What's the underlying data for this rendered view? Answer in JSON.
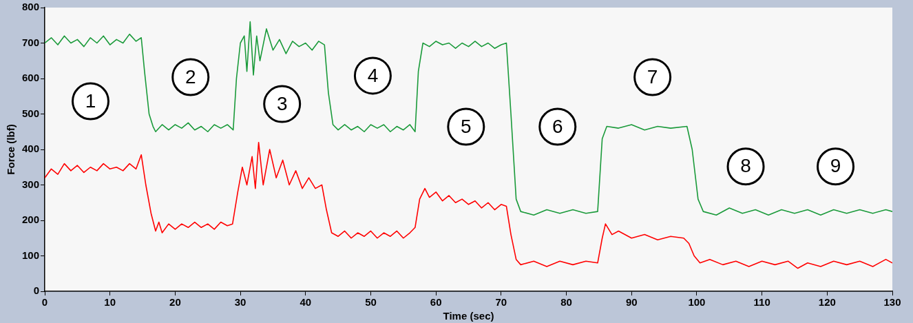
{
  "chart_data": {
    "type": "line",
    "xlabel": "Time (sec)",
    "ylabel": "Force (lbf)",
    "xlim": [
      0,
      130
    ],
    "ylim": [
      0,
      800
    ],
    "xticks": [
      0,
      10,
      20,
      30,
      40,
      50,
      60,
      70,
      80,
      90,
      100,
      110,
      120,
      130
    ],
    "yticks": [
      0,
      100,
      200,
      300,
      400,
      500,
      600,
      700,
      800
    ],
    "grid": false,
    "annotations": [
      "1",
      "2",
      "3",
      "4",
      "5",
      "6",
      "7",
      "8",
      "9"
    ],
    "series": [
      {
        "color": "#1a9a3a",
        "x": [
          0,
          1,
          2,
          3,
          4,
          5,
          6,
          7,
          8,
          9,
          10,
          11,
          12,
          13,
          14,
          14.8,
          15.3,
          16,
          16.6,
          17,
          18,
          19,
          20,
          21,
          22,
          23,
          24,
          25,
          26,
          27,
          28,
          28.9,
          29.4,
          30,
          30.6,
          31,
          31.5,
          32,
          32.5,
          33,
          34,
          35,
          36,
          37,
          38,
          39,
          40,
          41,
          42,
          42.9,
          43.5,
          44.2,
          45,
          46,
          47,
          48,
          49,
          50,
          51,
          52,
          53,
          54,
          55,
          56,
          56.8,
          57.3,
          58,
          59,
          60,
          61,
          62,
          63,
          64,
          65,
          66,
          67,
          68,
          69,
          70,
          70.8,
          71.5,
          72.3,
          73,
          75,
          77,
          79,
          81,
          83,
          84.8,
          85.5,
          86.2,
          88,
          90,
          92,
          94,
          96,
          98.5,
          99.3,
          100.2,
          101,
          103,
          105,
          107,
          109,
          111,
          113,
          115,
          117,
          119,
          121,
          123,
          125,
          127,
          129,
          130
        ],
        "values": [
          700,
          715,
          695,
          720,
          700,
          710,
          690,
          715,
          700,
          720,
          695,
          710,
          700,
          725,
          705,
          715,
          620,
          500,
          465,
          450,
          470,
          455,
          470,
          460,
          475,
          455,
          465,
          450,
          470,
          460,
          470,
          455,
          600,
          700,
          720,
          620,
          760,
          610,
          720,
          650,
          740,
          680,
          710,
          670,
          705,
          690,
          700,
          680,
          705,
          695,
          560,
          470,
          455,
          470,
          455,
          465,
          450,
          470,
          460,
          470,
          450,
          465,
          455,
          470,
          450,
          620,
          700,
          690,
          705,
          695,
          700,
          685,
          700,
          690,
          705,
          690,
          700,
          685,
          695,
          700,
          500,
          260,
          225,
          215,
          230,
          220,
          230,
          220,
          225,
          430,
          465,
          460,
          470,
          455,
          465,
          460,
          465,
          400,
          260,
          225,
          215,
          235,
          220,
          230,
          215,
          230,
          220,
          230,
          215,
          230,
          220,
          230,
          220,
          230,
          225
        ]
      },
      {
        "color": "#ff0000",
        "x": [
          0,
          1,
          2,
          3,
          4,
          5,
          6,
          7,
          8,
          9,
          10,
          11,
          12,
          13,
          14,
          14.8,
          15.5,
          16.3,
          17,
          17.5,
          18,
          19,
          20,
          21,
          22,
          23,
          24,
          25,
          26,
          27,
          28,
          28.8,
          29.6,
          30.3,
          31,
          31.8,
          32.3,
          32.8,
          33.5,
          34.5,
          35.5,
          36.5,
          37.5,
          38.5,
          39.5,
          40.5,
          41.5,
          42.5,
          43.2,
          44,
          45,
          46,
          47,
          48,
          49,
          50,
          51,
          52,
          53,
          54,
          55,
          56,
          56.8,
          57.5,
          58.3,
          59,
          60,
          61,
          62,
          63,
          64,
          65,
          66,
          67,
          68,
          69,
          70,
          70.8,
          71.5,
          72.3,
          73,
          75,
          77,
          79,
          81,
          83,
          84.8,
          85.5,
          86,
          87,
          88,
          90,
          92,
          94,
          96,
          98,
          98.8,
          99.6,
          100.5,
          102,
          104,
          106,
          108,
          110,
          112,
          114,
          115.5,
          117,
          119,
          121,
          123,
          125,
          127,
          129,
          130
        ],
        "values": [
          320,
          345,
          330,
          360,
          340,
          355,
          335,
          350,
          340,
          360,
          345,
          350,
          340,
          360,
          345,
          385,
          300,
          220,
          170,
          195,
          165,
          190,
          175,
          190,
          180,
          195,
          180,
          190,
          175,
          195,
          185,
          190,
          280,
          350,
          300,
          380,
          290,
          420,
          300,
          400,
          320,
          370,
          300,
          340,
          290,
          320,
          290,
          300,
          230,
          165,
          155,
          170,
          150,
          165,
          155,
          170,
          150,
          165,
          155,
          170,
          150,
          165,
          180,
          260,
          290,
          265,
          280,
          255,
          270,
          250,
          260,
          245,
          255,
          235,
          250,
          230,
          245,
          240,
          160,
          90,
          75,
          85,
          70,
          85,
          75,
          85,
          80,
          150,
          190,
          160,
          170,
          150,
          160,
          145,
          155,
          150,
          135,
          100,
          80,
          90,
          75,
          85,
          70,
          85,
          75,
          85,
          65,
          80,
          70,
          85,
          75,
          85,
          70,
          90,
          80
        ]
      }
    ]
  }
}
